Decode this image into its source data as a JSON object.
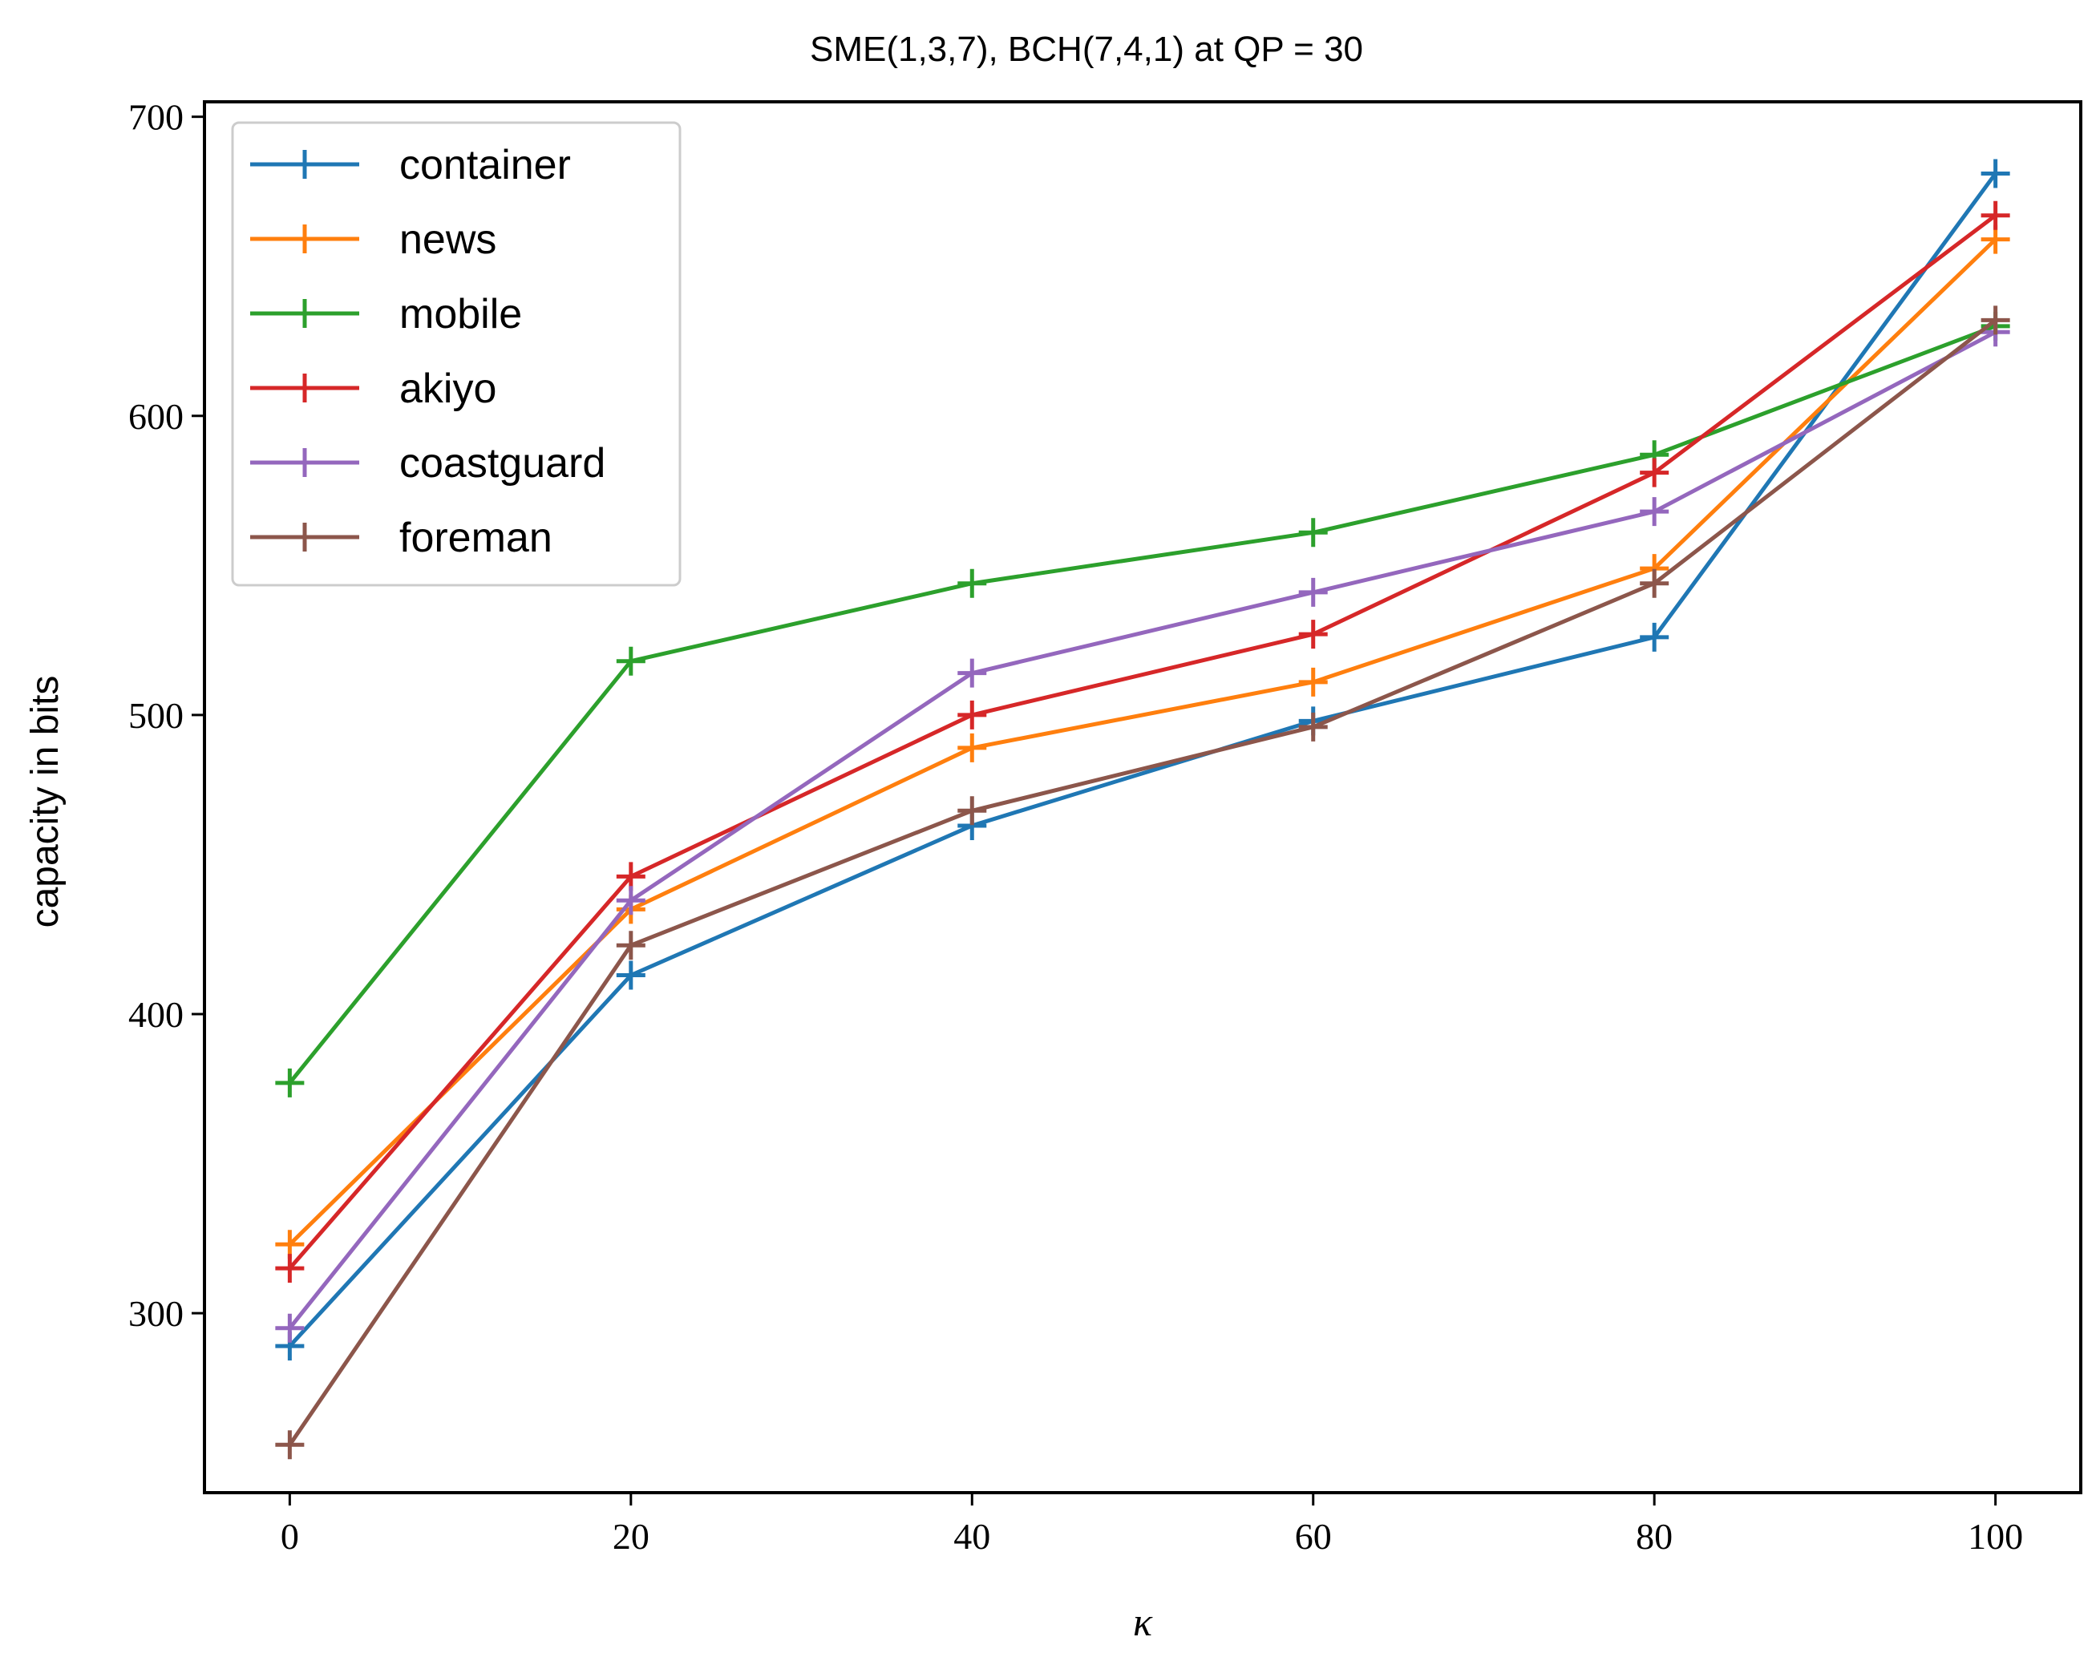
{
  "chart_data": {
    "type": "line",
    "title": "SME(1,3,7), BCH(7,4,1) at QP = 30",
    "xlabel": "κ",
    "ylabel": "capacity in bits",
    "x": [
      0,
      20,
      40,
      60,
      80,
      100
    ],
    "xticks": [
      "0",
      "20",
      "40",
      "60",
      "80",
      "100"
    ],
    "yticks": [
      "300",
      "400",
      "500",
      "600",
      "700"
    ],
    "xlim": [
      -5,
      105
    ],
    "ylim": [
      240,
      705
    ],
    "grid": false,
    "legend_position": "upper-left",
    "marker": "+",
    "series": [
      {
        "name": "container",
        "color": "#1f77b4",
        "values": [
          289,
          413,
          463,
          498,
          526,
          681
        ]
      },
      {
        "name": "news",
        "color": "#ff7f0e",
        "values": [
          323,
          435,
          489,
          511,
          549,
          659
        ]
      },
      {
        "name": "mobile",
        "color": "#2ca02c",
        "values": [
          377,
          518,
          544,
          561,
          587,
          630
        ]
      },
      {
        "name": "akiyo",
        "color": "#d62728",
        "values": [
          315,
          446,
          500,
          527,
          581,
          667
        ]
      },
      {
        "name": "coastguard",
        "color": "#9467bd",
        "values": [
          295,
          438,
          514,
          541,
          568,
          628
        ]
      },
      {
        "name": "foreman",
        "color": "#8c564b",
        "values": [
          256,
          423,
          468,
          496,
          544,
          632
        ]
      }
    ]
  }
}
